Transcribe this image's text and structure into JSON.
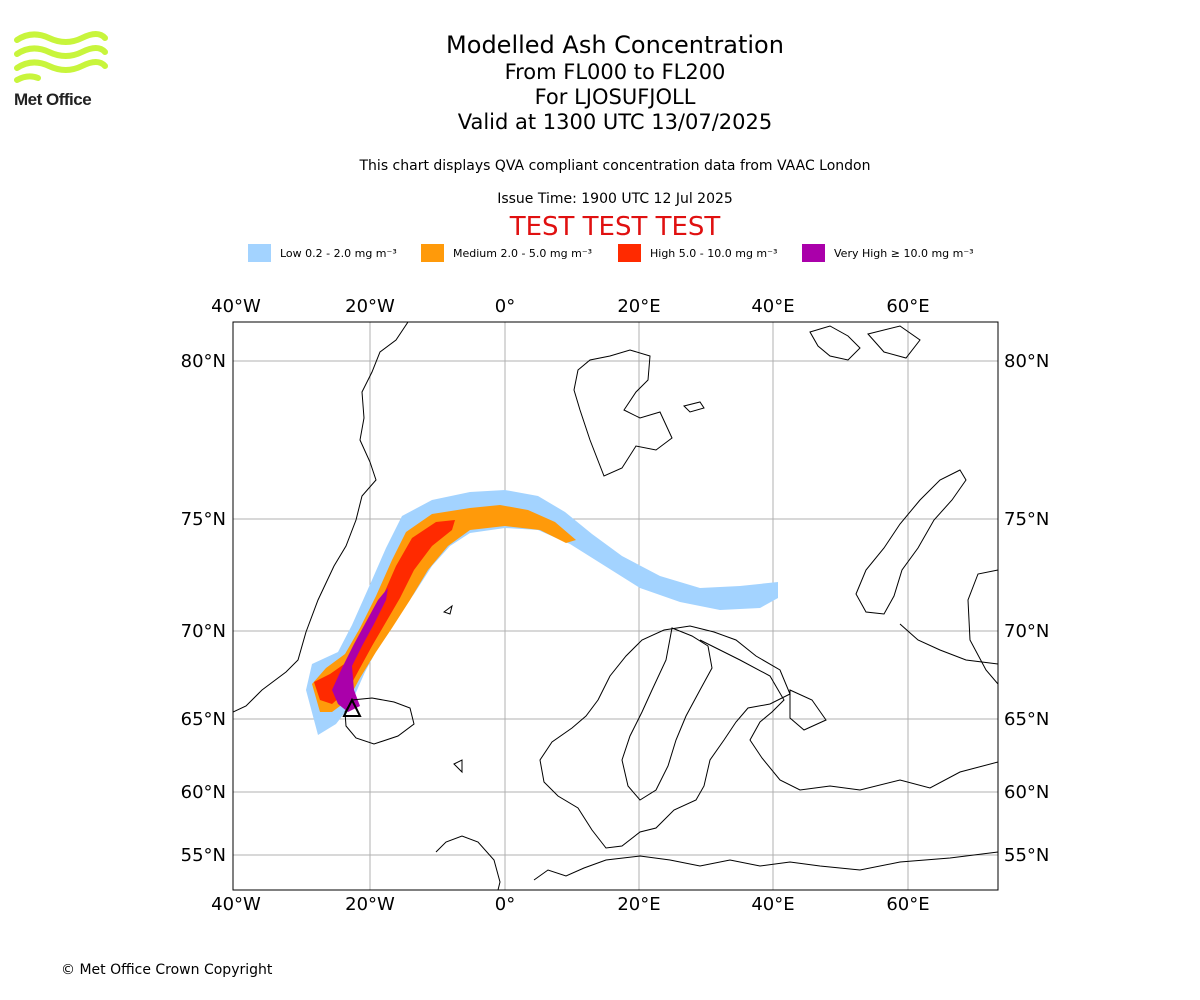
{
  "logo": {
    "text": "Met Office",
    "wave_color": "#c8f53c"
  },
  "title": {
    "line1": "Modelled Ash Concentration",
    "line2": "From FL000 to FL200",
    "line3": "For LJOSUFJOLL",
    "line4": "Valid at 1300 UTC 13/07/2025"
  },
  "subtitle": "This chart displays QVA compliant concentration data from VAAC London",
  "issue_time": "Issue Time: 1900 UTC 12 Jul 2025",
  "test_banner": "TEST TEST TEST",
  "legend": [
    {
      "label": "Low 0.2 - 2.0 mg m⁻³",
      "color": "#a3d3ff"
    },
    {
      "label": "Medium 2.0 - 5.0 mg m⁻³",
      "color": "#ff9a0a"
    },
    {
      "label": "High 5.0 - 10.0 mg m⁻³",
      "color": "#ff2a00"
    },
    {
      "label": "Very High  ≥  10.0 mg m⁻³",
      "color": "#aa00aa"
    }
  ],
  "map": {
    "lon_ticks": [
      "40°W",
      "20°W",
      "0°",
      "20°E",
      "40°E",
      "60°E"
    ],
    "lat_ticks": [
      "80°N",
      "75°N",
      "70°N",
      "65°N",
      "60°N",
      "55°N"
    ],
    "volcano_marker": "triangle"
  },
  "copyright": "© Met Office Crown Copyright"
}
